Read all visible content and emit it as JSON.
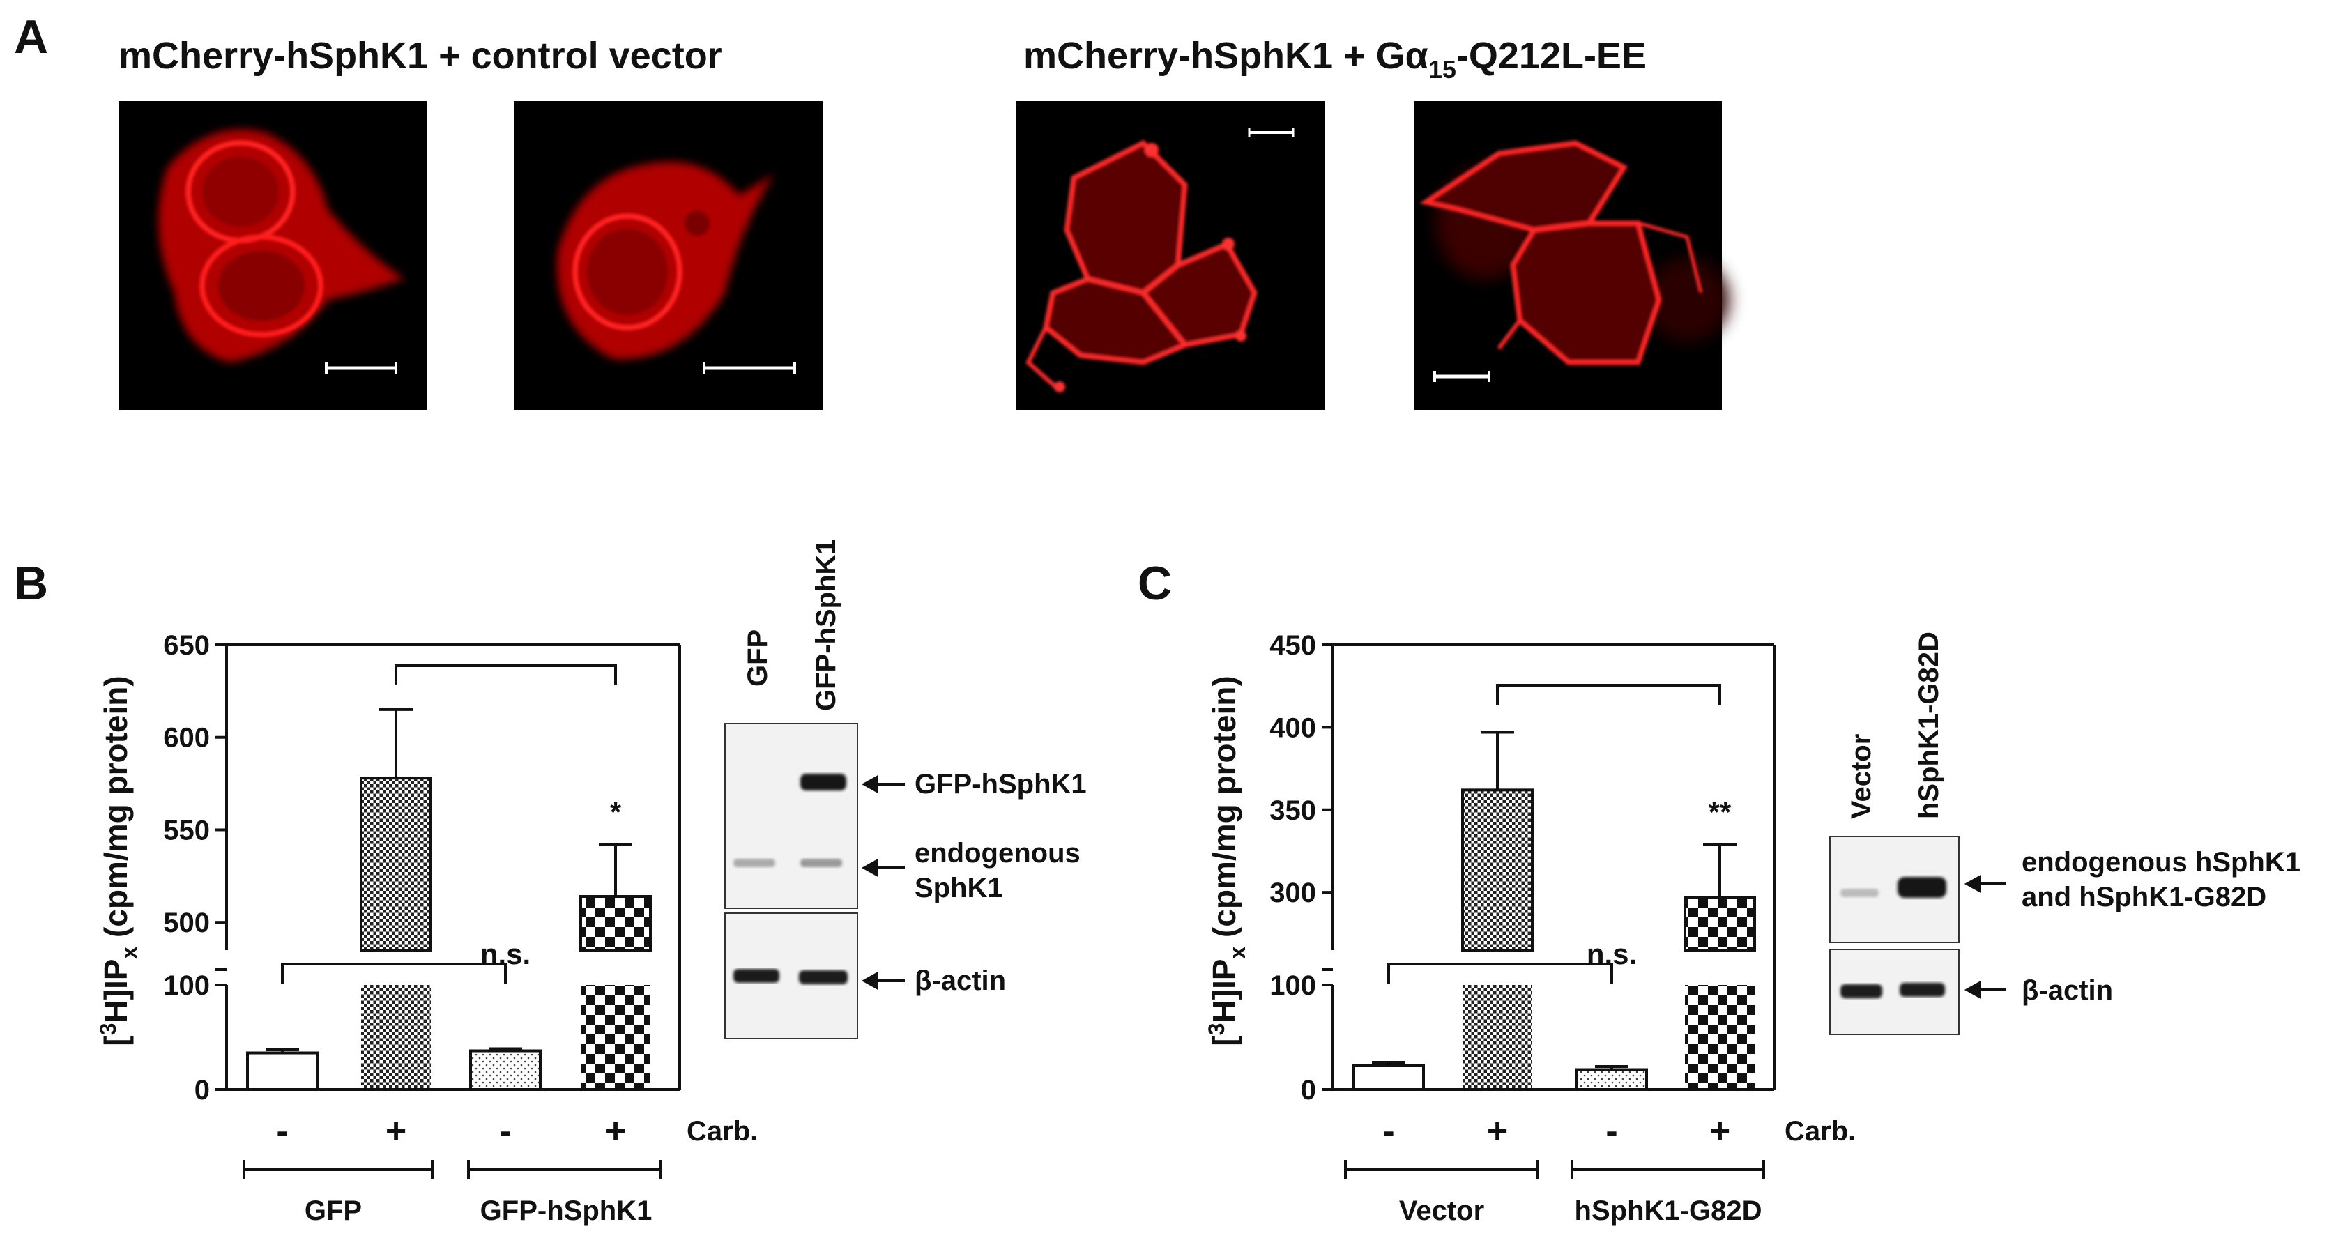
{
  "panel_a": {
    "letter": "A",
    "header_left": "mCherry-hSphK1 + control vector",
    "header_right_prefix": "mCherry-hSphK1 + Gα",
    "header_right_sub": "15",
    "header_right_suffix": "-Q212L-EE"
  },
  "panel_b": {
    "letter": "B",
    "ylabel_pre": "[",
    "ylabel_sup": "3",
    "ylabel_mid": "H]IP",
    "ylabel_sub": "x",
    "ylabel_post": " (cpm/mg protein)",
    "x_signs": [
      "-",
      "+",
      "-",
      "+"
    ],
    "carb_label": "Carb.",
    "groups": [
      "GFP",
      "GFP-hSphK1"
    ],
    "sig_star": "*",
    "sig_ns": "n.s.",
    "blot": {
      "lane_labels": [
        "GFP",
        "GFP-hSphK1"
      ],
      "band_top": "GFP-hSphK1",
      "band_mid_1": "endogenous",
      "band_mid_2": "SphK1",
      "band_actin": "β-actin"
    }
  },
  "panel_c": {
    "letter": "C",
    "x_signs": [
      "-",
      "+",
      "-",
      "+"
    ],
    "carb_label": "Carb.",
    "groups": [
      "Vector",
      "hSphK1-G82D"
    ],
    "sig_star": "**",
    "sig_ns": "n.s.",
    "blot": {
      "lane_labels": [
        "Vector",
        "hSphK1-G82D"
      ],
      "band_1": "endogenous hSphK1",
      "band_2": "and hSphK1-G82D",
      "band_actin": "β-actin"
    }
  },
  "chart_data": [
    {
      "type": "bar",
      "categories": [
        "GFP -",
        "GFP +",
        "GFP-hSphK1 -",
        "GFP-hSphK1 +"
      ],
      "values": [
        35,
        578,
        37,
        514
      ],
      "errors": [
        3,
        37,
        2,
        28
      ],
      "patterns": [
        "open",
        "crosshatch",
        "dots",
        "checker"
      ],
      "ylabel": "[3H]IPx (cpm/mg protein)",
      "yticks": [
        0,
        100,
        500,
        550,
        600,
        650
      ],
      "axis_break": [
        100,
        485
      ],
      "ylim": [
        0,
        650
      ]
    },
    {
      "type": "bar",
      "categories": [
        "Vector -",
        "Vector +",
        "hSphK1-G82D -",
        "hSphK1-G82D +"
      ],
      "values": [
        23,
        362,
        19,
        297
      ],
      "errors": [
        3,
        35,
        3,
        32
      ],
      "patterns": [
        "open",
        "crosshatch",
        "dots",
        "checker"
      ],
      "ylabel": "[3H]IPx (cpm/mg protein)",
      "yticks": [
        0,
        100,
        300,
        350,
        400,
        450
      ],
      "axis_break": [
        100,
        265
      ],
      "ylim": [
        0,
        450
      ]
    }
  ]
}
